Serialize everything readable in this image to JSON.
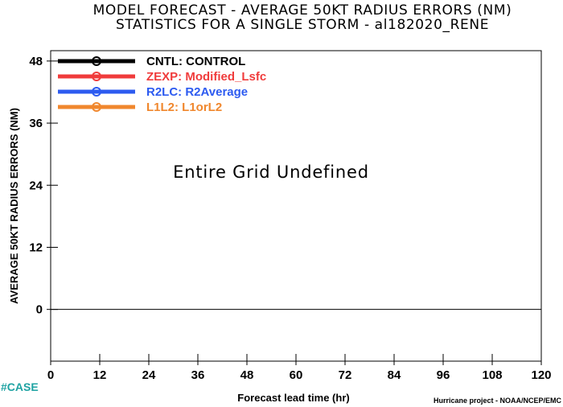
{
  "chart_data": {
    "type": "line",
    "title": "MODEL FORECAST - AVERAGE 50KT RADIUS ERRORS (NM)",
    "subtitle": "STATISTICS FOR A SINGLE STORM - al182020_RENE",
    "xlabel": "Forecast lead time (hr)",
    "ylabel": "AVERAGE 50KT RADIUS ERRORS (NM)",
    "xlim": [
      0,
      120
    ],
    "ylim": [
      -10,
      50
    ],
    "xticks": [
      0,
      12,
      24,
      36,
      48,
      60,
      72,
      84,
      96,
      108,
      120
    ],
    "yticks": [
      0,
      12,
      24,
      36,
      48
    ],
    "zero_line": 0,
    "grid": false,
    "legend_position": "top-left",
    "series": [
      {
        "code": "CNTL",
        "name": "CONTROL",
        "label": "CNTL: CONTROL",
        "color": "#000000",
        "values": []
      },
      {
        "code": "ZEXP",
        "name": "Modified_Lsfc",
        "label": "ZEXP: Modified_Lsfc",
        "color": "#f03c3c",
        "values": []
      },
      {
        "code": "R2LC",
        "name": "R2Average",
        "label": "R2LC: R2Average",
        "color": "#2d5bf0",
        "values": []
      },
      {
        "code": "L1L2",
        "name": "L1orL2",
        "label": "L1L2: L1orL2",
        "color": "#f0872d",
        "values": []
      }
    ],
    "annotation": "Entire Grid Undefined"
  },
  "footer": {
    "case_label": "#CASE",
    "credit": "Hurricane project - NOAA/NCEP/EMC"
  }
}
